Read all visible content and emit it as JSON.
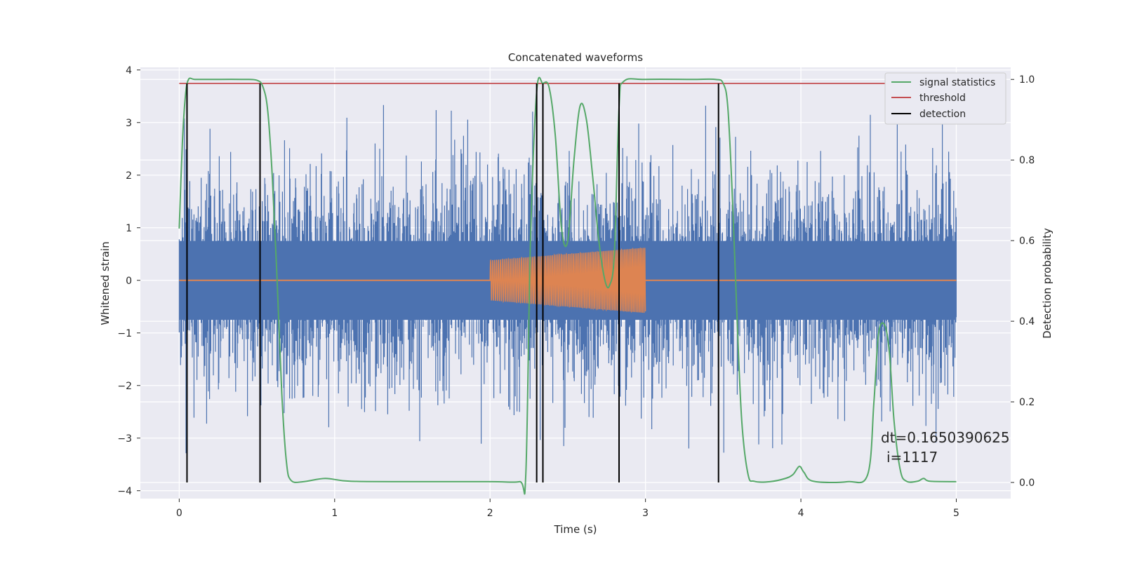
{
  "chart_data": {
    "type": "line",
    "title": "Concatenated waveforms",
    "xlabel": "Time (s)",
    "ylabel": "Whitened strain",
    "ylabel_right": "Detection probability",
    "xlim": [
      -0.25,
      5.35
    ],
    "ylim": [
      -4.15,
      4.05
    ],
    "ylim_right": [
      -0.04,
      1.03
    ],
    "xticks": [
      0,
      1,
      2,
      3,
      4,
      5
    ],
    "yticks": [
      -4,
      -3,
      -2,
      -1,
      0,
      1,
      2,
      3,
      4
    ],
    "yticks_right": [
      0.0,
      0.2,
      0.4,
      0.6,
      0.8,
      1.0
    ],
    "ytick_labels": [
      "−4",
      "−3",
      "−2",
      "−1",
      "0",
      "1",
      "2",
      "3",
      "4"
    ],
    "ytick_right_labels": [
      "0.0",
      "0.2",
      "0.4",
      "0.6",
      "0.8",
      "1.0"
    ],
    "grid": true,
    "legend_position": "top-right",
    "colors": {
      "noise": "#4c72b0",
      "waveform": "#dd8452",
      "signal_statistics": "#55a868",
      "threshold": "#c44e52",
      "detection": "#000000",
      "plot_bg": "#eaeaf2",
      "grid": "#ffffff"
    },
    "noise": {
      "x_range": [
        0,
        5
      ],
      "band_amplitude": 0.75,
      "typical_peak": 2.2,
      "max_peak": 3.5
    },
    "waveform": {
      "x_range": [
        2.0,
        3.0
      ],
      "amplitude_start": 0.38,
      "amplitude_end": 0.62,
      "cycles": 78
    },
    "series": [
      {
        "name": "signal statistics",
        "axis": "right",
        "x": [
          0,
          0.02,
          0.04,
          0.06,
          0.1,
          0.2,
          0.4,
          0.5,
          0.54,
          0.57,
          0.6,
          0.63,
          0.66,
          0.69,
          0.72,
          0.8,
          0.94,
          1.1,
          1.5,
          2.0,
          2.19,
          2.23,
          2.26,
          2.3,
          2.34,
          2.38,
          2.42,
          2.46,
          2.5,
          2.54,
          2.58,
          2.62,
          2.66,
          2.7,
          2.74,
          2.77,
          2.8,
          2.83,
          2.86,
          3.0,
          3.3,
          3.45,
          3.5,
          3.53,
          3.56,
          3.59,
          3.62,
          3.66,
          3.7,
          3.8,
          3.9,
          3.95,
          3.99,
          4.02,
          4.08,
          4.3,
          4.43,
          4.47,
          4.5,
          4.54,
          4.57,
          4.6,
          4.64,
          4.68,
          4.75,
          4.79,
          4.83,
          5.0
        ],
        "y": [
          0.63,
          0.84,
          0.96,
          1.0,
          1.0,
          1.0,
          1.0,
          0.998,
          0.98,
          0.92,
          0.75,
          0.5,
          0.22,
          0.05,
          0.005,
          0.002,
          0.01,
          0.003,
          0.002,
          0.002,
          0.002,
          0.02,
          0.6,
          0.97,
          0.99,
          0.98,
          0.86,
          0.63,
          0.6,
          0.8,
          0.935,
          0.9,
          0.76,
          0.6,
          0.5,
          0.49,
          0.57,
          0.93,
          0.995,
          1.0,
          1.0,
          1.0,
          0.99,
          0.93,
          0.7,
          0.4,
          0.15,
          0.02,
          0.003,
          0.002,
          0.01,
          0.02,
          0.04,
          0.025,
          0.003,
          0.002,
          0.02,
          0.2,
          0.37,
          0.39,
          0.32,
          0.15,
          0.03,
          0.003,
          0.003,
          0.01,
          0.003,
          0.002
        ]
      },
      {
        "name": "threshold",
        "axis": "right",
        "x": [
          0,
          5
        ],
        "y": [
          0.99,
          0.99
        ]
      },
      {
        "name": "detection",
        "axis": "right",
        "vlines": [
          0.05,
          0.52,
          2.3,
          2.34,
          2.83,
          3.47
        ],
        "y_range": [
          0.0,
          0.99
        ]
      }
    ],
    "annotation": {
      "line1": "dt=0.1650390625",
      "line2": "i=1117",
      "x": 4.5,
      "y": 0.1
    }
  }
}
